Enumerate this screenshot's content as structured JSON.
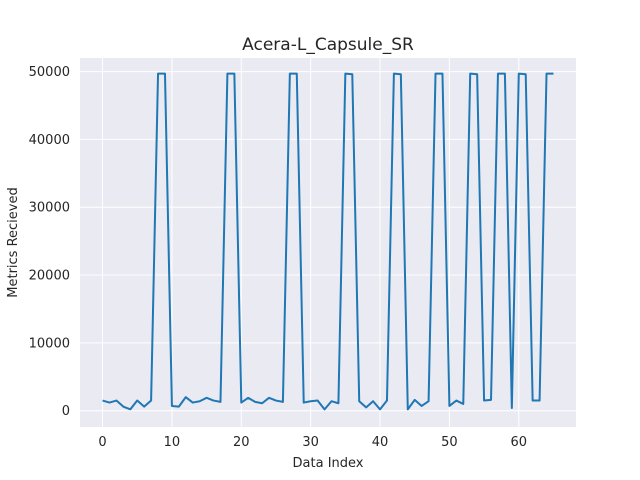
{
  "chart_data": {
    "type": "line",
    "title": "Acera-L_Capsule_SR",
    "xlabel": "Data Index",
    "ylabel": "Metrics Recieved",
    "xlim": [
      -3.25,
      68.25
    ],
    "ylim": [
      -2400,
      52000
    ],
    "xticks": [
      0,
      10,
      20,
      30,
      40,
      50,
      60
    ],
    "yticks": [
      0,
      10000,
      20000,
      30000,
      40000,
      50000
    ],
    "grid": true,
    "background": "#eaeaf2",
    "series": [
      {
        "color": "#1f77b4",
        "x": [
          0,
          1,
          2,
          3,
          4,
          5,
          6,
          7,
          8,
          9,
          10,
          11,
          12,
          13,
          14,
          15,
          16,
          17,
          18,
          19,
          20,
          21,
          22,
          23,
          24,
          25,
          26,
          27,
          28,
          29,
          30,
          31,
          32,
          33,
          34,
          35,
          36,
          37,
          38,
          39,
          40,
          41,
          42,
          43,
          44,
          45,
          46,
          47,
          48,
          49,
          50,
          51,
          52,
          53,
          54,
          55,
          56,
          57,
          58,
          59,
          60,
          61,
          62,
          63,
          64,
          65
        ],
        "y": [
          1500,
          1200,
          1500,
          600,
          200,
          1500,
          600,
          1500,
          49700,
          49700,
          700,
          600,
          2000,
          1200,
          1400,
          1900,
          1500,
          1300,
          49700,
          49700,
          1200,
          1900,
          1300,
          1100,
          1900,
          1500,
          1300,
          49700,
          49700,
          1200,
          1400,
          1500,
          200,
          1400,
          1100,
          49700,
          49600,
          1400,
          500,
          1400,
          200,
          1500,
          49700,
          49600,
          200,
          1600,
          700,
          1400,
          49700,
          49700,
          700,
          1500,
          1000,
          49700,
          49600,
          1500,
          1600,
          49700,
          49700,
          400,
          49700,
          49600,
          1500,
          1500,
          49700,
          49700
        ]
      }
    ]
  }
}
